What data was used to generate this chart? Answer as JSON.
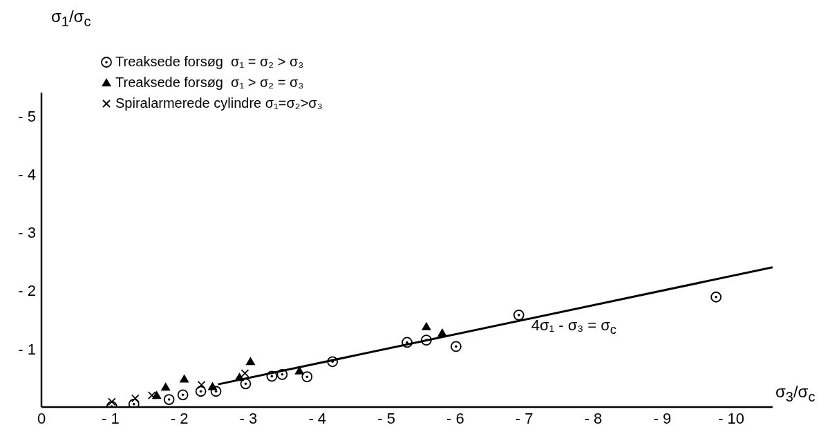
{
  "chart_data": {
    "type": "scatter",
    "xlabel": "σ$_{3}$/σ$_{c}$",
    "ylabel": "σ$_{1}$/σ$_{c}$",
    "xlim": [
      0,
      -10.6
    ],
    "ylim": [
      0,
      -5.4
    ],
    "xticks": [
      0,
      -1,
      -2,
      -3,
      -4,
      -5,
      -6,
      -7,
      -8,
      -9,
      -10
    ],
    "yticks": [
      -1,
      -2,
      -3,
      -4,
      -5
    ],
    "grid": false,
    "legend": "top left",
    "series": [
      {
        "name": "Treaksede forsøg  σ₁ = σ₂ > σ₃",
        "color": "#000000",
        "marker": "circle",
        "x": [
          -1.02,
          -1.34,
          -1.85,
          -2.05,
          -2.31,
          -2.53,
          -2.96,
          -3.34,
          -3.49,
          -3.85,
          -4.22,
          -5.3,
          -5.58,
          -6.01,
          -6.92,
          -9.78
        ],
        "values": [
          -0.01,
          -0.05,
          -0.13,
          -0.21,
          -0.27,
          -0.27,
          -0.4,
          -0.53,
          -0.56,
          -0.52,
          -0.78,
          -1.11,
          -1.15,
          -1.04,
          -1.58,
          -1.89
        ]
      },
      {
        "name": "Treaksede forsøg  σ₁ > σ₂ = σ₃",
        "color": "#000000",
        "marker": "triangle",
        "x": [
          -1.67,
          -1.8,
          -2.07,
          -2.48,
          -2.87,
          -3.03,
          -3.74,
          -5.58,
          -5.81
        ],
        "values": [
          -0.2,
          -0.34,
          -0.48,
          -0.35,
          -0.51,
          -0.78,
          -0.62,
          -1.38,
          -1.27
        ]
      },
      {
        "name": "Spiralarmerede cylindre σ₁=σ₂>σ₃",
        "color": "#000000",
        "marker": "cross",
        "x": [
          -1.02,
          -1.36,
          -1.6,
          -2.32,
          -2.95
        ],
        "values": [
          -0.09,
          -0.15,
          -0.2,
          -0.38,
          -0.58
        ]
      },
      {
        "type": "line",
        "color": "#000000",
        "marker": "none",
        "line_style": "solid",
        "x": [
          -2.56,
          -10.6
        ],
        "values": [
          -0.39,
          -2.4
        ]
      }
    ],
    "annotations": [
      "4σ₁ - σ₃ = σ$_{c}$"
    ]
  }
}
